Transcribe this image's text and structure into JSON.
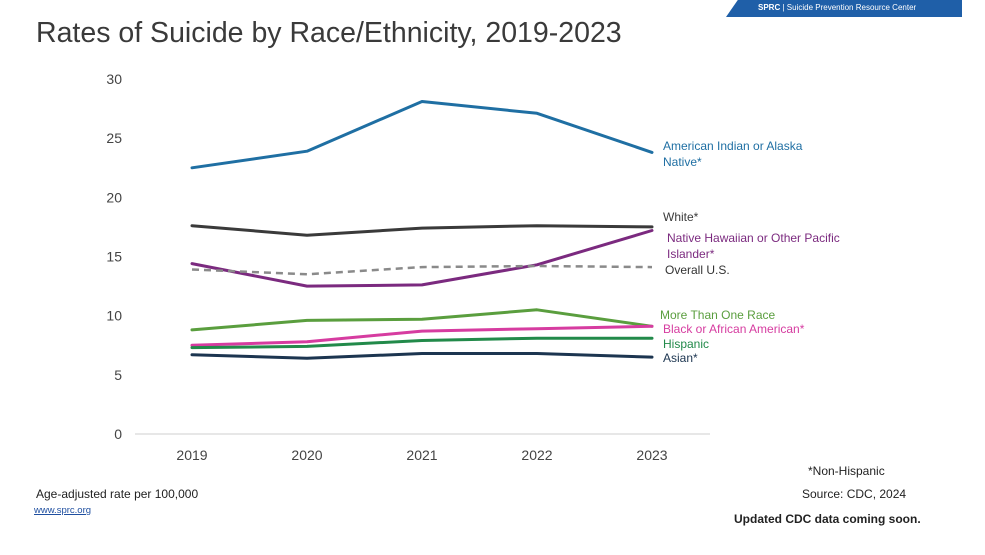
{
  "brand": {
    "abbr": "SPRC",
    "separator": "|",
    "name": "Suicide Prevention Resource Center"
  },
  "title": "Rates of Suicide by Race/Ethnicity, 2019-2023",
  "footer": {
    "footnote": "*Non-Hispanic",
    "ylabel_note": "Age-adjusted rate per 100,000",
    "source": "Source: CDC, 2024",
    "website": "www.sprc.org",
    "update": "Updated CDC data coming soon."
  },
  "chart_data": {
    "type": "line",
    "title": "Rates of Suicide by Race/Ethnicity, 2019-2023",
    "x": [
      "2019",
      "2020",
      "2021",
      "2022",
      "2023"
    ],
    "ylim": [
      0,
      30
    ],
    "yticks": [
      0,
      5,
      10,
      15,
      20,
      25,
      30
    ],
    "ylabel": "Age-adjusted rate per 100,000",
    "grid": false,
    "legend": "right-inline",
    "series": [
      {
        "name": "American Indian or Alaska Native*",
        "label_lines": [
          "American Indian or Alaska",
          "Native*"
        ],
        "color": "#1f6fa3",
        "dashed": false,
        "values": [
          22.5,
          23.9,
          28.1,
          27.1,
          23.8
        ]
      },
      {
        "name": "White*",
        "label_lines": [
          "White*"
        ],
        "color": "#3a3a3a",
        "dashed": false,
        "values": [
          17.6,
          16.8,
          17.4,
          17.6,
          17.5
        ]
      },
      {
        "name": "Native Hawaiian or Other Pacific Islander*",
        "label_lines": [
          "Native Hawaiian or Other Pacific",
          "Islander*"
        ],
        "color": "#7b2a7f",
        "dashed": false,
        "values": [
          14.4,
          12.5,
          12.6,
          14.3,
          17.2
        ]
      },
      {
        "name": "Overall U.S.",
        "label_lines": [
          "Overall U.S."
        ],
        "color": "#8a8a8a",
        "dashed": true,
        "values": [
          13.9,
          13.5,
          14.1,
          14.2,
          14.1
        ]
      },
      {
        "name": "More Than One Race",
        "label_lines": [
          "More Than One Race"
        ],
        "color": "#5a9e3e",
        "dashed": false,
        "values": [
          8.8,
          9.6,
          9.7,
          10.5,
          9.1
        ]
      },
      {
        "name": "Black or African American*",
        "label_lines": [
          "Black or African American*"
        ],
        "color": "#d63ca0",
        "dashed": false,
        "values": [
          7.5,
          7.8,
          8.7,
          8.9,
          9.1
        ]
      },
      {
        "name": "Hispanic",
        "label_lines": [
          "Hispanic"
        ],
        "color": "#228a4a",
        "dashed": false,
        "values": [
          7.3,
          7.4,
          7.9,
          8.1,
          8.1
        ]
      },
      {
        "name": "Asian*",
        "label_lines": [
          "Asian*"
        ],
        "color": "#1c3550",
        "dashed": false,
        "values": [
          6.7,
          6.4,
          6.8,
          6.8,
          6.5
        ]
      }
    ]
  }
}
